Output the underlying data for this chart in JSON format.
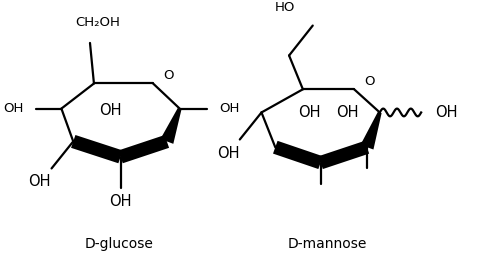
{
  "background_color": "#ffffff",
  "line_color": "#000000",
  "line_width": 1.6,
  "font_size": 9.5,
  "label_font_size": 10,
  "glucose_label": "D-glucose",
  "mannose_label": "D-mannose",
  "ch2oh_label": "CH₂OH",
  "O_label": "O",
  "OH_label": "OH",
  "HO_label": "HO",
  "figsize": [
    5.0,
    2.65
  ],
  "dpi": 100,
  "xlim": [
    0,
    500
  ],
  "ylim": [
    0,
    265
  ]
}
